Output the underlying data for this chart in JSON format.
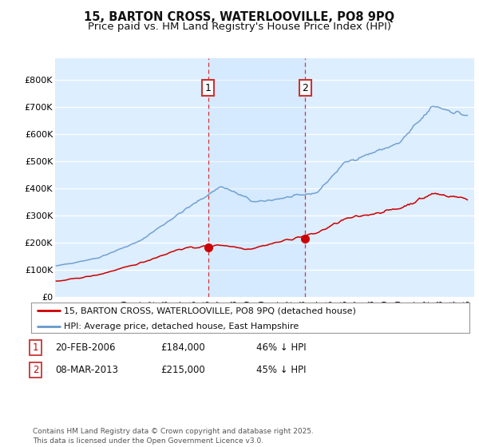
{
  "title": "15, BARTON CROSS, WATERLOOVILLE, PO8 9PQ",
  "subtitle": "Price paid vs. HM Land Registry's House Price Index (HPI)",
  "title_fontsize": 10.5,
  "subtitle_fontsize": 9.5,
  "ylim": [
    0,
    880000
  ],
  "yticks": [
    0,
    100000,
    200000,
    300000,
    400000,
    500000,
    600000,
    700000,
    800000
  ],
  "ytick_labels": [
    "£0",
    "£100K",
    "£200K",
    "£300K",
    "£400K",
    "£500K",
    "£600K",
    "£700K",
    "£800K"
  ],
  "background_color": "#ffffff",
  "plot_bg_color": "#ddeeff",
  "grid_color": "#ffffff",
  "hpi_color": "#6699cc",
  "price_color": "#cc0000",
  "vline_color": "#dd3333",
  "legend_label_price": "15, BARTON CROSS, WATERLOOVILLE, PO8 9PQ (detached house)",
  "legend_label_hpi": "HPI: Average price, detached house, East Hampshire",
  "footer": "Contains HM Land Registry data © Crown copyright and database right 2025.\nThis data is licensed under the Open Government Licence v3.0."
}
